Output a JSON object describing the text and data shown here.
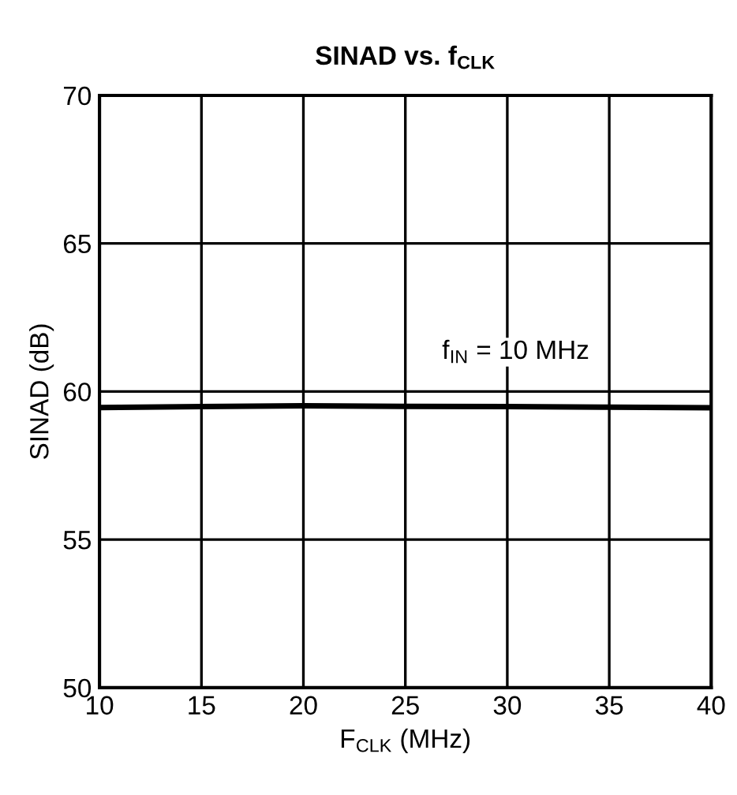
{
  "chart_data": {
    "type": "line",
    "title": "SINAD vs. f$_{CLK}$",
    "xlabel": "F$_{CLK}$ (MHz)",
    "ylabel": "SINAD (dB)",
    "x": [
      10,
      15,
      20,
      25,
      30,
      35,
      40
    ],
    "series": [
      {
        "color": "#000000",
        "values": [
          59.46,
          59.49,
          59.52,
          59.5,
          59.49,
          59.47,
          59.45
        ]
      }
    ],
    "annotations": [
      "f$_{IN}$ = 10 MHz"
    ],
    "xlim": [
      10,
      40
    ],
    "xticks": [
      10,
      15,
      20,
      25,
      30,
      35,
      40
    ],
    "ylim": [
      50,
      70
    ],
    "yticks": [
      50,
      55,
      60,
      65,
      70
    ],
    "grid": true,
    "marker": "none",
    "line_style": "solid"
  }
}
